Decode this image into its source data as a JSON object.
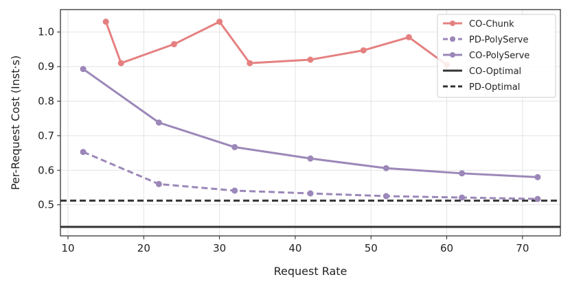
{
  "chart_data": {
    "type": "line",
    "xlabel": "Request Rate",
    "ylabel": "Per-Request Cost (Inst·s)",
    "xlim": [
      9,
      75
    ],
    "ylim": [
      0.41,
      1.065
    ],
    "xticks": [
      10,
      20,
      30,
      40,
      50,
      60,
      70
    ],
    "yticks": [
      0.5,
      0.6,
      0.7,
      0.8,
      0.9,
      1.0
    ],
    "grid": true,
    "legend_position": "top-right",
    "series": [
      {
        "name": "CO-Chunk",
        "color": "#e58080",
        "style": "solid",
        "marker": true,
        "x": [
          15,
          17,
          24,
          30,
          34,
          42,
          49,
          55,
          60
        ],
        "y": [
          1.03,
          0.91,
          0.965,
          1.03,
          0.91,
          0.92,
          0.947,
          0.985,
          0.905
        ]
      },
      {
        "name": "PD-PolyServe",
        "color": "#9b87b8",
        "style": "dashed",
        "marker": true,
        "x": [
          12,
          22,
          32,
          42,
          52,
          62,
          72
        ],
        "y": [
          0.653,
          0.56,
          0.541,
          0.533,
          0.525,
          0.521,
          0.517
        ]
      },
      {
        "name": "CO-PolyServe",
        "color": "#9b87b8",
        "style": "solid",
        "marker": true,
        "x": [
          12,
          22,
          32,
          42,
          52,
          62,
          72
        ],
        "y": [
          0.893,
          0.738,
          0.667,
          0.634,
          0.606,
          0.591,
          0.58
        ]
      },
      {
        "name": "CO-Optimal",
        "color": "#333333",
        "style": "solid",
        "marker": false,
        "hline": 0.436
      },
      {
        "name": "PD-Optimal",
        "color": "#333333",
        "style": "dashed",
        "marker": false,
        "hline": 0.512
      }
    ]
  }
}
